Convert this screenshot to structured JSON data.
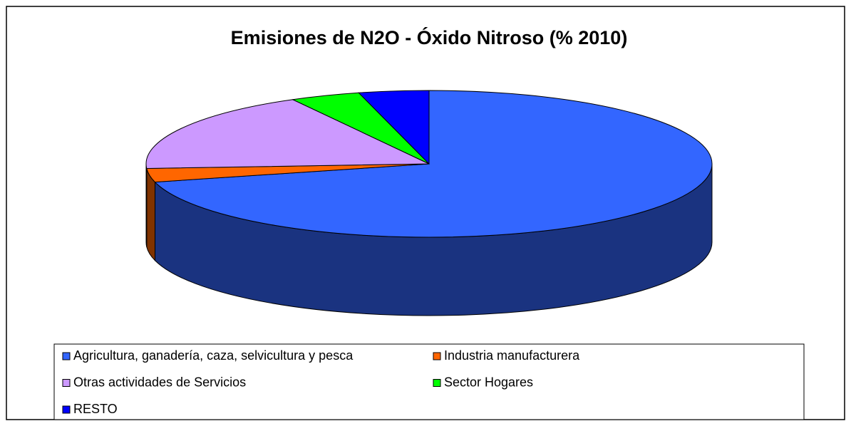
{
  "chart_data": {
    "type": "pie",
    "title": "Emisiones de N2O - Óxido Nitroso (% 2010)",
    "categories": [
      "Agricultura, ganadería, caza, selvicultura y pesca",
      "Industria manufacturera",
      "Otras actividades de Servicios",
      "Sector Hogares",
      "RESTO"
    ],
    "values": [
      71,
      3,
      18,
      4,
      4
    ],
    "colors": [
      "#3366ff",
      "#ff6600",
      "#cc99ff",
      "#00ff00",
      "#0000ff"
    ],
    "legend": "bottom"
  }
}
